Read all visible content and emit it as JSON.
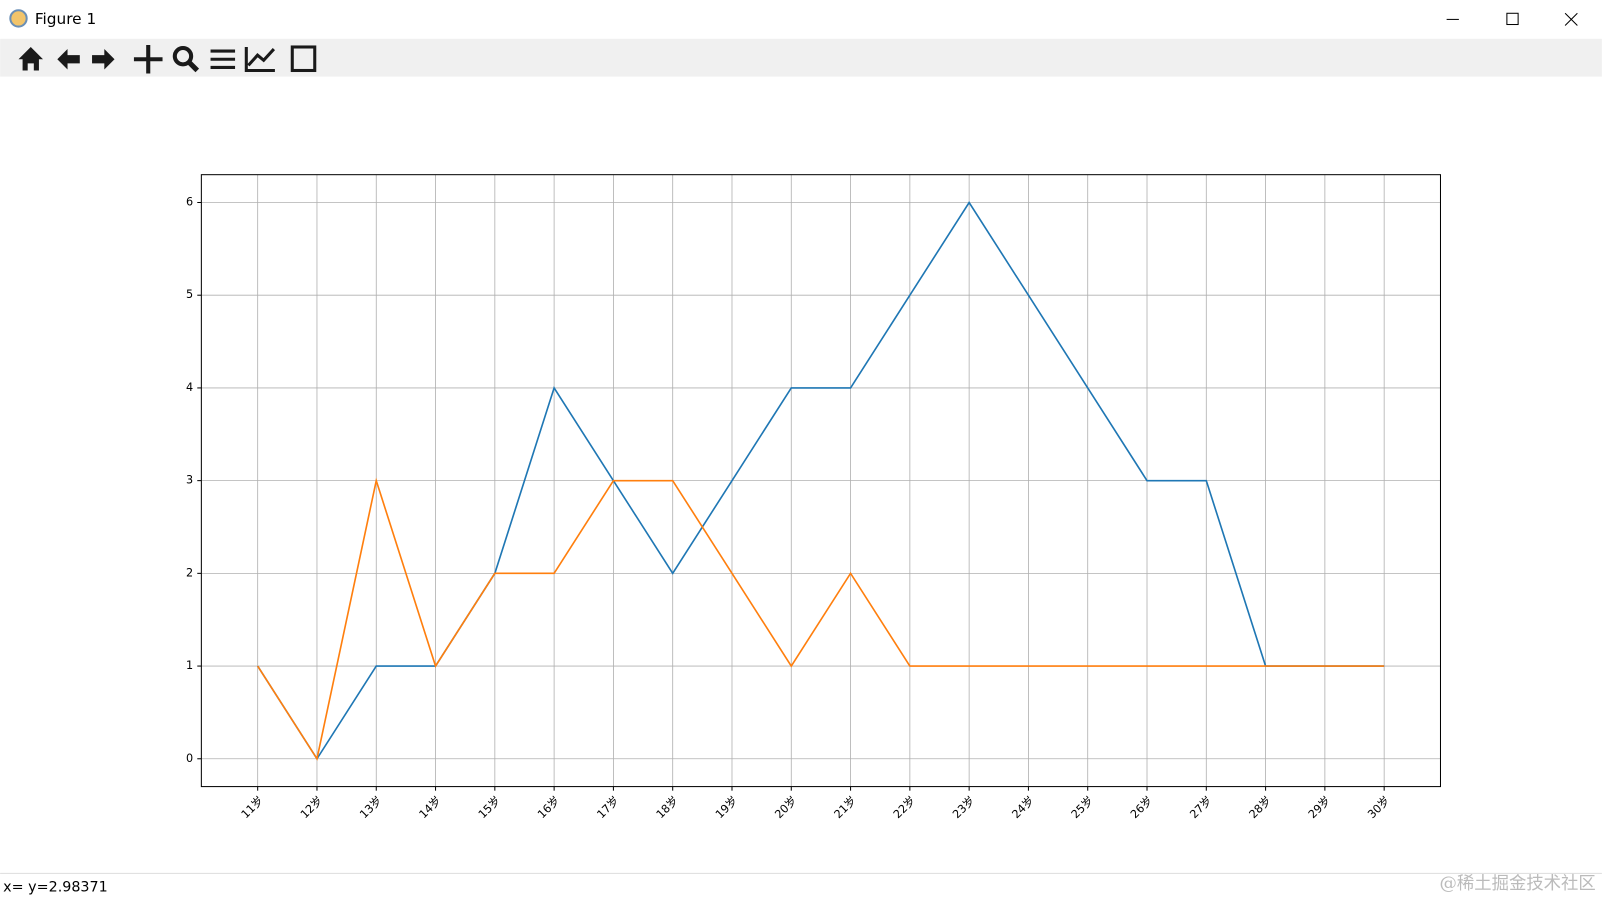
{
  "window": {
    "title": "Figure 1",
    "status": "x= y=2.98371",
    "watermark": "@稀土掘金技术社区"
  },
  "chart_data": {
    "type": "line",
    "categories": [
      "11岁",
      "12岁",
      "13岁",
      "14岁",
      "15岁",
      "16岁",
      "17岁",
      "18岁",
      "19岁",
      "20岁",
      "21岁",
      "22岁",
      "23岁",
      "24岁",
      "25岁",
      "26岁",
      "27岁",
      "28岁",
      "29岁",
      "30岁"
    ],
    "series": [
      {
        "color": "#1f77b4",
        "values": [
          1,
          0,
          1,
          1,
          2,
          4,
          3,
          2,
          3,
          4,
          4,
          5,
          6,
          5,
          4,
          3,
          3,
          1,
          1,
          1
        ]
      },
      {
        "color": "#ff7f0e",
        "values": [
          1,
          0,
          3,
          1,
          2,
          2,
          3,
          3,
          2,
          1,
          2,
          1,
          1,
          1,
          1,
          1,
          1,
          1,
          1,
          1
        ]
      }
    ],
    "ylim": [
      -0.3,
      6.3
    ],
    "yticks": [
      0,
      1,
      2,
      3,
      4,
      5,
      6
    ],
    "grid": true
  }
}
